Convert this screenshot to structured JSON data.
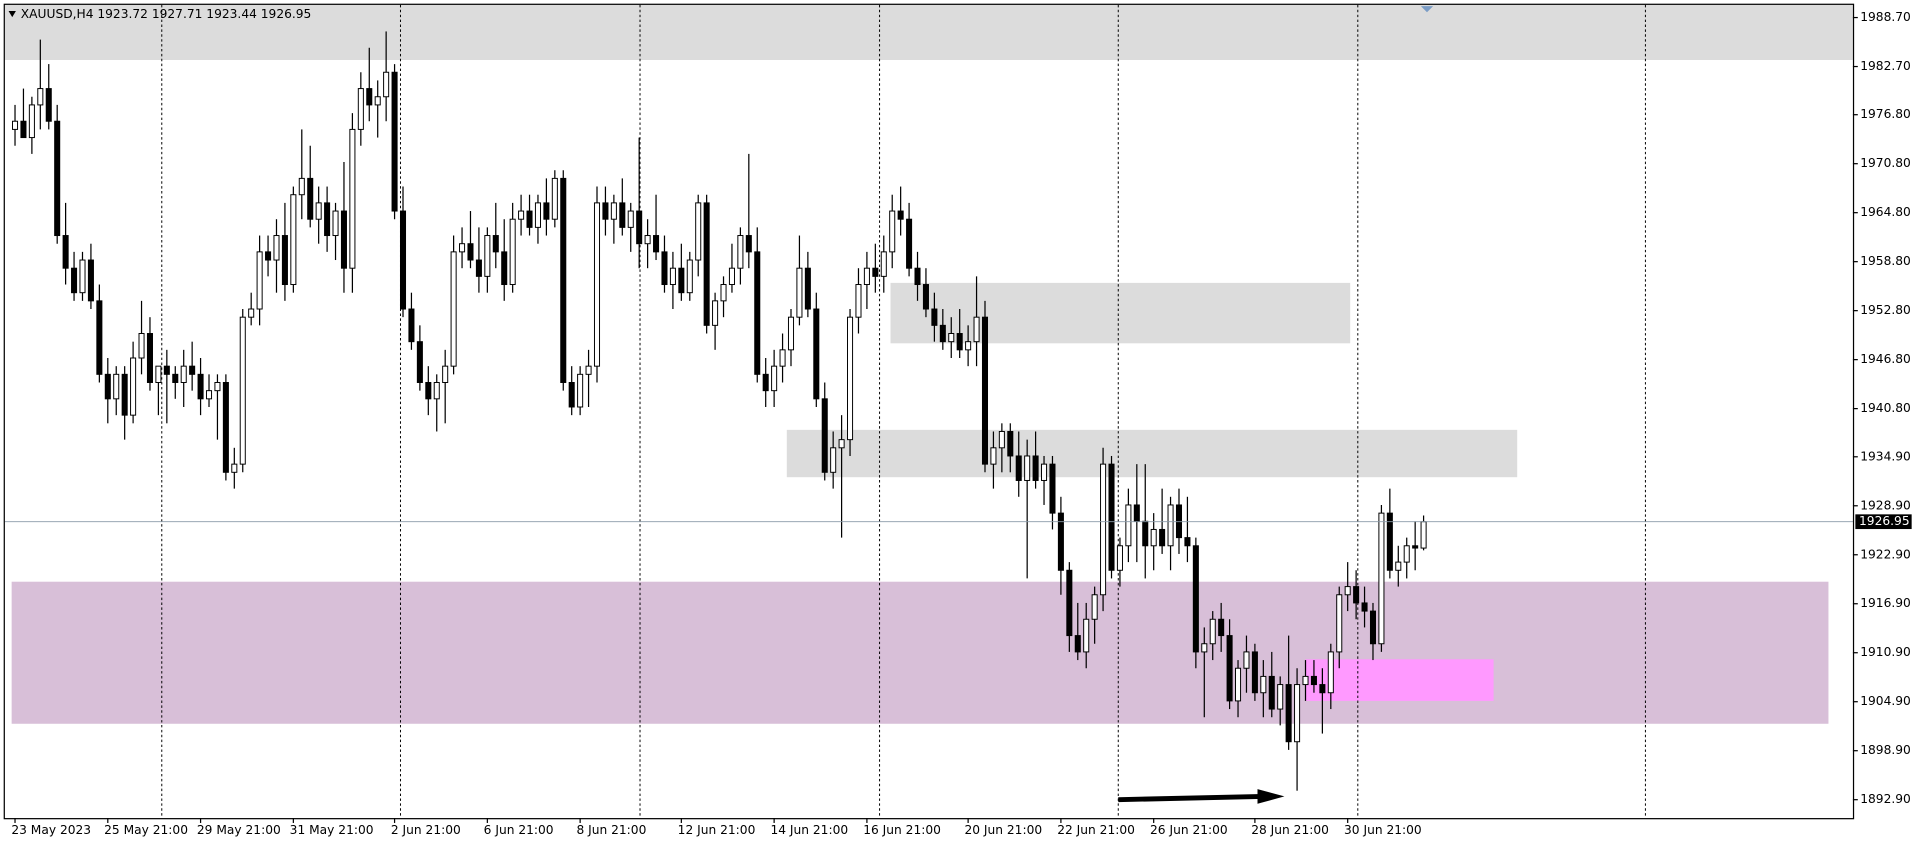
{
  "chart_data": {
    "type": "candlestick",
    "title": "XAUUSD,H4  1923.72 1927.71 1923.44 1926.95",
    "ohlc": [
      [
        1975,
        1978,
        1973,
        1976
      ],
      [
        1976,
        1980,
        1974,
        1974
      ],
      [
        1974,
        1979,
        1972,
        1978
      ],
      [
        1978,
        1986,
        1975,
        1980
      ],
      [
        1980,
        1983,
        1975,
        1976
      ],
      [
        1976,
        1978,
        1961,
        1962
      ],
      [
        1962,
        1966,
        1956,
        1958
      ],
      [
        1958,
        1960,
        1954,
        1955
      ],
      [
        1955,
        1960,
        1954,
        1959
      ],
      [
        1959,
        1961,
        1953,
        1954
      ],
      [
        1954,
        1956,
        1944,
        1945
      ],
      [
        1945,
        1947,
        1939,
        1942
      ],
      [
        1942,
        1946,
        1940,
        1945
      ],
      [
        1945,
        1946,
        1937,
        1940
      ],
      [
        1940,
        1949,
        1939,
        1947
      ],
      [
        1947,
        1954,
        1945,
        1950
      ],
      [
        1950,
        1952,
        1943,
        1944
      ],
      [
        1944,
        1946,
        1940,
        1946
      ],
      [
        1946,
        1948,
        1939,
        1945
      ],
      [
        1945,
        1946,
        1942,
        1944
      ],
      [
        1944,
        1948,
        1941,
        1946
      ],
      [
        1946,
        1949,
        1943,
        1945
      ],
      [
        1945,
        1947,
        1940,
        1942
      ],
      [
        1942,
        1945,
        1941,
        1943
      ],
      [
        1943,
        1945,
        1937,
        1944
      ],
      [
        1944,
        1945,
        1932,
        1933
      ],
      [
        1933,
        1936,
        1931,
        1934
      ],
      [
        1934,
        1953,
        1933,
        1952
      ],
      [
        1952,
        1955,
        1951,
        1953
      ],
      [
        1953,
        1962,
        1951,
        1960
      ],
      [
        1960,
        1962,
        1957,
        1959
      ],
      [
        1959,
        1964,
        1955,
        1962
      ],
      [
        1962,
        1966,
        1954,
        1956
      ],
      [
        1956,
        1968,
        1955,
        1967
      ],
      [
        1967,
        1975,
        1964,
        1969
      ],
      [
        1969,
        1973,
        1963,
        1964
      ],
      [
        1964,
        1968,
        1961,
        1966
      ],
      [
        1966,
        1968,
        1960,
        1962
      ],
      [
        1962,
        1966,
        1959,
        1965
      ],
      [
        1965,
        1971,
        1955,
        1958
      ],
      [
        1958,
        1977,
        1955,
        1975
      ],
      [
        1975,
        1982,
        1973,
        1980
      ],
      [
        1980,
        1985,
        1976,
        1978
      ],
      [
        1978,
        1981,
        1974,
        1979
      ],
      [
        1979,
        1987,
        1976,
        1982
      ],
      [
        1982,
        1983,
        1964,
        1965
      ],
      [
        1965,
        1968,
        1952,
        1953
      ],
      [
        1953,
        1955,
        1948,
        1949
      ],
      [
        1949,
        1951,
        1943,
        1944
      ],
      [
        1944,
        1946,
        1940,
        1942
      ],
      [
        1942,
        1945,
        1938,
        1944
      ],
      [
        1944,
        1948,
        1939,
        1946
      ],
      [
        1946,
        1962,
        1945,
        1960
      ],
      [
        1960,
        1963,
        1958,
        1961
      ],
      [
        1961,
        1965,
        1958,
        1959
      ],
      [
        1959,
        1963,
        1955,
        1957
      ],
      [
        1957,
        1963,
        1955,
        1962
      ],
      [
        1962,
        1966,
        1958,
        1960
      ],
      [
        1960,
        1964,
        1954,
        1956
      ],
      [
        1956,
        1966,
        1955,
        1964
      ],
      [
        1964,
        1967,
        1962,
        1965
      ],
      [
        1965,
        1967,
        1962,
        1963
      ],
      [
        1963,
        1967,
        1961,
        1966
      ],
      [
        1966,
        1969,
        1962,
        1964
      ],
      [
        1964,
        1970,
        1963,
        1969
      ],
      [
        1969,
        1970,
        1943,
        1944
      ],
      [
        1944,
        1946,
        1940,
        1941
      ],
      [
        1941,
        1946,
        1940,
        1945
      ],
      [
        1945,
        1948,
        1941,
        1946
      ],
      [
        1946,
        1968,
        1944,
        1966
      ],
      [
        1966,
        1968,
        1962,
        1964
      ],
      [
        1964,
        1967,
        1961,
        1966
      ],
      [
        1966,
        1969,
        1962,
        1963
      ],
      [
        1963,
        1966,
        1960,
        1965
      ],
      [
        1965,
        1974,
        1958,
        1961
      ],
      [
        1961,
        1964,
        1958,
        1962
      ],
      [
        1962,
        1967,
        1959,
        1960
      ],
      [
        1960,
        1962,
        1955,
        1956
      ],
      [
        1956,
        1960,
        1953,
        1958
      ],
      [
        1958,
        1961,
        1954,
        1955
      ],
      [
        1955,
        1960,
        1954,
        1959
      ],
      [
        1959,
        1967,
        1957,
        1966
      ],
      [
        1966,
        1967,
        1950,
        1951
      ],
      [
        1951,
        1955,
        1948,
        1954
      ],
      [
        1954,
        1957,
        1952,
        1956
      ],
      [
        1956,
        1961,
        1955,
        1958
      ],
      [
        1958,
        1963,
        1956,
        1962
      ],
      [
        1962,
        1972,
        1958,
        1960
      ],
      [
        1960,
        1963,
        1944,
        1945
      ],
      [
        1945,
        1947,
        1941,
        1943
      ],
      [
        1943,
        1948,
        1941,
        1946
      ],
      [
        1946,
        1950,
        1944,
        1948
      ],
      [
        1948,
        1953,
        1946,
        1952
      ],
      [
        1952,
        1962,
        1951,
        1958
      ],
      [
        1958,
        1960,
        1952,
        1953
      ],
      [
        1953,
        1955,
        1941,
        1942
      ],
      [
        1942,
        1944,
        1932,
        1933
      ],
      [
        1933,
        1938,
        1931,
        1936
      ],
      [
        1936,
        1940,
        1925,
        1937
      ],
      [
        1937,
        1953,
        1935,
        1952
      ],
      [
        1952,
        1958,
        1950,
        1956
      ],
      [
        1956,
        1960,
        1953,
        1958
      ],
      [
        1958,
        1961,
        1955,
        1957
      ],
      [
        1957,
        1962,
        1955,
        1960
      ],
      [
        1960,
        1967,
        1958,
        1965
      ],
      [
        1965,
        1968,
        1962,
        1964
      ],
      [
        1964,
        1966,
        1957,
        1958
      ],
      [
        1958,
        1960,
        1954,
        1956
      ],
      [
        1956,
        1958,
        1952,
        1953
      ],
      [
        1953,
        1955,
        1949,
        1951
      ],
      [
        1951,
        1953,
        1948,
        1949
      ],
      [
        1949,
        1952,
        1947,
        1950
      ],
      [
        1950,
        1953,
        1947,
        1948
      ],
      [
        1948,
        1951,
        1946,
        1949
      ],
      [
        1949,
        1957,
        1946,
        1952
      ],
      [
        1952,
        1954,
        1933,
        1934
      ],
      [
        1934,
        1938,
        1931,
        1936
      ],
      [
        1936,
        1939,
        1933,
        1938
      ],
      [
        1938,
        1939,
        1933,
        1935
      ],
      [
        1935,
        1938,
        1930,
        1932
      ],
      [
        1932,
        1937,
        1920,
        1935
      ],
      [
        1935,
        1938,
        1931,
        1932
      ],
      [
        1932,
        1935,
        1929,
        1934
      ],
      [
        1934,
        1935,
        1926,
        1928
      ],
      [
        1928,
        1930,
        1918,
        1921
      ],
      [
        1921,
        1922,
        1911,
        1913
      ],
      [
        1913,
        1917,
        1910,
        1911
      ],
      [
        1911,
        1917,
        1909,
        1915
      ],
      [
        1915,
        1919,
        1912,
        1918
      ],
      [
        1918,
        1936,
        1916,
        1934
      ],
      [
        1934,
        1935,
        1920,
        1921
      ],
      [
        1921,
        1925,
        1919,
        1924
      ],
      [
        1924,
        1931,
        1922,
        1929
      ],
      [
        1929,
        1934,
        1922,
        1927
      ],
      [
        1927,
        1934,
        1920,
        1924
      ],
      [
        1924,
        1928,
        1921,
        1926
      ],
      [
        1926,
        1931,
        1923,
        1924
      ],
      [
        1924,
        1930,
        1921,
        1929
      ],
      [
        1929,
        1931,
        1923,
        1925
      ],
      [
        1925,
        1930,
        1922,
        1924
      ],
      [
        1924,
        1925,
        1909,
        1911
      ],
      [
        1911,
        1914,
        1903,
        1912
      ],
      [
        1912,
        1916,
        1910,
        1915
      ],
      [
        1915,
        1917,
        1911,
        1913
      ],
      [
        1913,
        1915,
        1904,
        1905
      ],
      [
        1905,
        1910,
        1903,
        1909
      ],
      [
        1909,
        1913,
        1906,
        1911
      ],
      [
        1911,
        1912,
        1905,
        1906
      ],
      [
        1906,
        1910,
        1903,
        1908
      ],
      [
        1908,
        1911,
        1903,
        1904
      ],
      [
        1904,
        1908,
        1902,
        1907
      ],
      [
        1907,
        1913,
        1899,
        1900
      ],
      [
        1900,
        1909,
        1894,
        1907
      ],
      [
        1907,
        1910,
        1905,
        1908
      ],
      [
        1908,
        1910,
        1906,
        1907
      ],
      [
        1907,
        1909,
        1901,
        1906
      ],
      [
        1906,
        1912,
        1904,
        1911
      ],
      [
        1911,
        1919,
        1909,
        1918
      ],
      [
        1918,
        1922,
        1916,
        1919
      ],
      [
        1919,
        1921,
        1915,
        1917
      ],
      [
        1917,
        1919,
        1914,
        1916
      ],
      [
        1916,
        1917,
        1910,
        1912
      ],
      [
        1912,
        1929,
        1911,
        1928
      ],
      [
        1928,
        1931,
        1920,
        1921
      ],
      [
        1921,
        1924,
        1919,
        1922
      ],
      [
        1922,
        1925,
        1920,
        1924
      ],
      [
        1924,
        1927,
        1921,
        1923.72
      ],
      [
        1923.72,
        1927.71,
        1923.44,
        1926.95
      ]
    ],
    "xlim": [
      -1.2,
      217.9
    ],
    "xticks": [
      {
        "value": 0,
        "label": "23 May 2023"
      },
      {
        "value": 11,
        "label": "25 May 21:00"
      },
      {
        "value": 22,
        "label": "29 May 21:00"
      },
      {
        "value": 33,
        "label": "31 May 21:00"
      },
      {
        "value": 45,
        "label": "2 Jun 21:00"
      },
      {
        "value": 56,
        "label": "6 Jun 21:00"
      },
      {
        "value": 67,
        "label": "8 Jun 21:00"
      },
      {
        "value": 79,
        "label": "12 Jun 21:00"
      },
      {
        "value": 90,
        "label": "14 Jun 21:00"
      },
      {
        "value": 101,
        "label": "16 Jun 21:00"
      },
      {
        "value": 113,
        "label": "20 Jun 21:00"
      },
      {
        "value": 124,
        "label": "22 Jun 21:00"
      },
      {
        "value": 135,
        "label": "26 Jun 21:00"
      },
      {
        "value": 147,
        "label": "28 Jun 21:00"
      },
      {
        "value": 158,
        "label": "30 Jun 21:00"
      }
    ],
    "ylim": [
      1890.65,
      1990.25
    ],
    "yticks": [
      {
        "value": 1988.7,
        "label": "1988.70"
      },
      {
        "value": 1982.7,
        "label": "1982.70"
      },
      {
        "value": 1976.8,
        "label": "1976.80"
      },
      {
        "value": 1970.8,
        "label": "1970.80"
      },
      {
        "value": 1964.8,
        "label": "1964.80"
      },
      {
        "value": 1958.8,
        "label": "1958.80"
      },
      {
        "value": 1952.8,
        "label": "1952.80"
      },
      {
        "value": 1946.8,
        "label": "1946.80"
      },
      {
        "value": 1940.8,
        "label": "1940.80"
      },
      {
        "value": 1934.9,
        "label": "1934.90"
      },
      {
        "value": 1928.9,
        "label": "1928.90"
      },
      {
        "value": 1922.9,
        "label": "1922.90"
      },
      {
        "value": 1916.9,
        "label": "1916.90"
      },
      {
        "value": 1910.9,
        "label": "1910.90"
      },
      {
        "value": 1904.9,
        "label": "1904.90"
      },
      {
        "value": 1898.9,
        "label": "1898.90"
      },
      {
        "value": 1892.9,
        "label": "1892.90"
      }
    ],
    "bid": {
      "value": 1926.95,
      "label": "1926.95"
    },
    "period_separators": [
      17.4,
      45.7,
      74.1,
      102.5,
      130.8,
      159.2,
      193.3
    ],
    "zones": [
      {
        "x": [
          -1.2,
          217.9
        ],
        "y": [
          1983.5,
          1990.25
        ],
        "color": "#dcdcdc"
      },
      {
        "x": [
          103.8,
          158.3
        ],
        "y": [
          1948.8,
          1956.2
        ],
        "color": "#dcdcdc"
      },
      {
        "x": [
          91.5,
          178.1
        ],
        "y": [
          1932.4,
          1938.2
        ],
        "color": "#dcdcdc"
      },
      {
        "x": [
          -0.4,
          215
        ],
        "y": [
          1902.2,
          1919.6
        ],
        "color": "#d8bfd8"
      },
      {
        "x": [
          153,
          175.3
        ],
        "y": [
          1905,
          1910.1
        ],
        "color": "#ff99ff"
      }
    ],
    "arrow": {
      "x": [
        130.8,
        150.5
      ],
      "y": [
        1892.9,
        1893.3
      ],
      "color": "#000000"
    },
    "bull_color": "#ffffff",
    "bear_color": "#000000"
  }
}
